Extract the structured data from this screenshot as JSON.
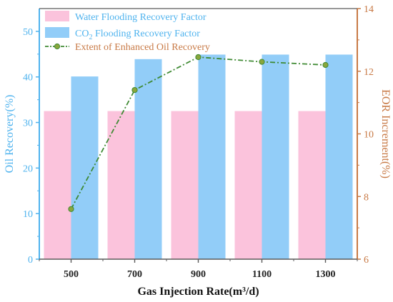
{
  "chart_data": {
    "type": "bar",
    "categories": [
      "500",
      "700",
      "900",
      "1100",
      "1300"
    ],
    "xlabel": "Gas Injection Rate(m³/d)",
    "ylabel_left": "Oil Recovery(%)",
    "ylabel_right": "EOR Increment(%)",
    "ylim_left": [
      0,
      55
    ],
    "ylim_right": [
      6,
      14
    ],
    "yticks_left": [
      "0",
      "10",
      "20",
      "30",
      "40",
      "50"
    ],
    "yticks_right": [
      "6",
      "8",
      "10",
      "12",
      "14"
    ],
    "grid": false,
    "legend_position": "top-left",
    "series": [
      {
        "name": "Water Flooding Recovery Factor",
        "kind": "bar",
        "axis": "left",
        "color": "#fbc3dc",
        "values": [
          32.5,
          32.5,
          32.5,
          32.5,
          32.5
        ]
      },
      {
        "name": "CO₂ Flooding Recovery Factor",
        "name_prefix": "CO",
        "name_sub": "2",
        "name_suffix": " Flooding Recovery Factor",
        "kind": "bar",
        "axis": "left",
        "color": "#92cdf8",
        "values": [
          40.1,
          43.9,
          44.9,
          44.9,
          44.9
        ]
      },
      {
        "name": "Extent of Enhanced Oil Recovery",
        "kind": "line",
        "axis": "right",
        "color": "#3f8a33",
        "values": [
          7.6,
          11.4,
          12.45,
          12.3,
          12.2
        ]
      }
    ],
    "colors": {
      "left_axis": "#4fb3ee",
      "right_axis": "#c87a46",
      "bottom_axis": "#5a5a5a",
      "line_marker_fill": "#8aa63c"
    }
  }
}
